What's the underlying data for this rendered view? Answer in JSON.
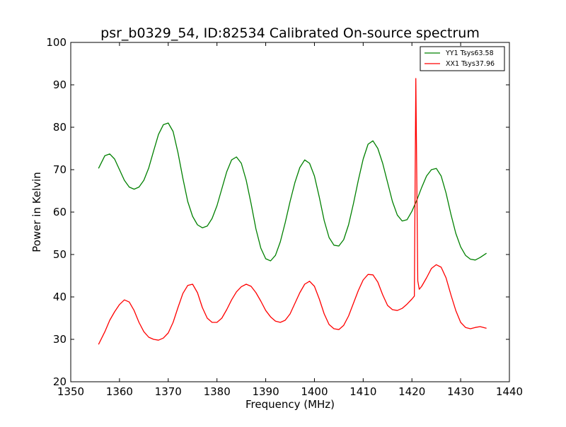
{
  "chart_data": {
    "type": "line",
    "title": "psr_b0329_54, ID:82534 Calibrated On-source spectrum",
    "xlabel": "Frequency (MHz)",
    "ylabel": "Power in Kelvin",
    "xlim": [
      1350,
      1440
    ],
    "ylim": [
      20,
      100
    ],
    "xticks": [
      1350,
      1360,
      1370,
      1380,
      1390,
      1400,
      1410,
      1420,
      1430,
      1440
    ],
    "yticks": [
      20,
      30,
      40,
      50,
      60,
      70,
      80,
      90,
      100
    ],
    "grid": false,
    "legend_position": "top-right",
    "series": [
      {
        "name": "YY1 Tsys63.58",
        "color": "#008000",
        "points": [
          [
            1355.7,
            70.3
          ],
          [
            1357.0,
            73.3
          ],
          [
            1358.0,
            73.7
          ],
          [
            1359.0,
            72.5
          ],
          [
            1360.0,
            70.0
          ],
          [
            1361.0,
            67.5
          ],
          [
            1362.0,
            65.9
          ],
          [
            1363.0,
            65.4
          ],
          [
            1364.0,
            65.9
          ],
          [
            1365.0,
            67.5
          ],
          [
            1366.0,
            70.4
          ],
          [
            1367.0,
            74.4
          ],
          [
            1368.0,
            78.3
          ],
          [
            1369.0,
            80.6
          ],
          [
            1370.0,
            81.0
          ],
          [
            1371.0,
            79.0
          ],
          [
            1372.0,
            74.0
          ],
          [
            1373.0,
            68.0
          ],
          [
            1374.0,
            62.5
          ],
          [
            1375.0,
            59.0
          ],
          [
            1376.0,
            57.0
          ],
          [
            1377.0,
            56.3
          ],
          [
            1378.0,
            56.7
          ],
          [
            1379.0,
            58.5
          ],
          [
            1380.0,
            61.5
          ],
          [
            1381.0,
            65.5
          ],
          [
            1382.0,
            69.5
          ],
          [
            1383.0,
            72.3
          ],
          [
            1384.0,
            73.0
          ],
          [
            1385.0,
            71.5
          ],
          [
            1386.0,
            67.5
          ],
          [
            1387.0,
            62.0
          ],
          [
            1388.0,
            56.0
          ],
          [
            1389.0,
            51.5
          ],
          [
            1390.0,
            49.0
          ],
          [
            1391.0,
            48.5
          ],
          [
            1392.0,
            49.8
          ],
          [
            1393.0,
            53.0
          ],
          [
            1394.0,
            57.5
          ],
          [
            1395.0,
            62.5
          ],
          [
            1396.0,
            67.0
          ],
          [
            1397.0,
            70.5
          ],
          [
            1398.0,
            72.3
          ],
          [
            1399.0,
            71.5
          ],
          [
            1400.0,
            68.5
          ],
          [
            1401.0,
            63.5
          ],
          [
            1402.0,
            58.0
          ],
          [
            1403.0,
            54.0
          ],
          [
            1404.0,
            52.2
          ],
          [
            1405.0,
            52.0
          ],
          [
            1406.0,
            53.5
          ],
          [
            1407.0,
            57.0
          ],
          [
            1408.0,
            62.0
          ],
          [
            1409.0,
            67.5
          ],
          [
            1410.0,
            72.5
          ],
          [
            1411.0,
            76.0
          ],
          [
            1412.0,
            76.8
          ],
          [
            1413.0,
            75.0
          ],
          [
            1414.0,
            71.5
          ],
          [
            1415.0,
            67.0
          ],
          [
            1416.0,
            62.5
          ],
          [
            1417.0,
            59.3
          ],
          [
            1418.0,
            57.9
          ],
          [
            1419.0,
            58.2
          ],
          [
            1420.0,
            60.2
          ],
          [
            1421.0,
            62.8
          ],
          [
            1422.0,
            65.8
          ],
          [
            1423.0,
            68.5
          ],
          [
            1424.0,
            70.0
          ],
          [
            1425.0,
            70.3
          ],
          [
            1426.0,
            68.5
          ],
          [
            1427.0,
            64.5
          ],
          [
            1428.0,
            59.5
          ],
          [
            1429.0,
            55.0
          ],
          [
            1430.0,
            51.8
          ],
          [
            1431.0,
            49.8
          ],
          [
            1432.0,
            48.9
          ],
          [
            1433.0,
            48.7
          ],
          [
            1434.0,
            49.3
          ],
          [
            1435.3,
            50.3
          ]
        ]
      },
      {
        "name": "XX1 Tsys37.96",
        "color": "#ff0000",
        "points": [
          [
            1355.7,
            28.8
          ],
          [
            1357.0,
            31.8
          ],
          [
            1358.0,
            34.5
          ],
          [
            1359.0,
            36.5
          ],
          [
            1360.0,
            38.2
          ],
          [
            1361.0,
            39.3
          ],
          [
            1362.0,
            38.8
          ],
          [
            1363.0,
            36.8
          ],
          [
            1364.0,
            34.0
          ],
          [
            1365.0,
            31.8
          ],
          [
            1366.0,
            30.5
          ],
          [
            1367.0,
            30.0
          ],
          [
            1368.0,
            29.8
          ],
          [
            1369.0,
            30.3
          ],
          [
            1370.0,
            31.5
          ],
          [
            1371.0,
            34.0
          ],
          [
            1372.0,
            37.5
          ],
          [
            1373.0,
            40.8
          ],
          [
            1374.0,
            42.7
          ],
          [
            1375.0,
            43.0
          ],
          [
            1376.0,
            41.0
          ],
          [
            1377.0,
            37.5
          ],
          [
            1378.0,
            35.0
          ],
          [
            1379.0,
            34.0
          ],
          [
            1380.0,
            34.0
          ],
          [
            1381.0,
            35.0
          ],
          [
            1382.0,
            37.0
          ],
          [
            1383.0,
            39.3
          ],
          [
            1384.0,
            41.2
          ],
          [
            1385.0,
            42.4
          ],
          [
            1386.0,
            43.0
          ],
          [
            1387.0,
            42.5
          ],
          [
            1388.0,
            41.0
          ],
          [
            1389.0,
            39.0
          ],
          [
            1390.0,
            36.8
          ],
          [
            1391.0,
            35.3
          ],
          [
            1392.0,
            34.3
          ],
          [
            1393.0,
            34.0
          ],
          [
            1394.0,
            34.5
          ],
          [
            1395.0,
            36.0
          ],
          [
            1396.0,
            38.5
          ],
          [
            1397.0,
            41.0
          ],
          [
            1398.0,
            43.0
          ],
          [
            1399.0,
            43.7
          ],
          [
            1400.0,
            42.5
          ],
          [
            1401.0,
            39.5
          ],
          [
            1402.0,
            36.0
          ],
          [
            1403.0,
            33.5
          ],
          [
            1404.0,
            32.5
          ],
          [
            1405.0,
            32.3
          ],
          [
            1406.0,
            33.3
          ],
          [
            1407.0,
            35.5
          ],
          [
            1408.0,
            38.5
          ],
          [
            1409.0,
            41.5
          ],
          [
            1410.0,
            44.0
          ],
          [
            1411.0,
            45.3
          ],
          [
            1412.0,
            45.2
          ],
          [
            1413.0,
            43.5
          ],
          [
            1414.0,
            40.5
          ],
          [
            1415.0,
            38.0
          ],
          [
            1416.0,
            37.0
          ],
          [
            1417.0,
            36.8
          ],
          [
            1418.0,
            37.3
          ],
          [
            1419.0,
            38.3
          ],
          [
            1420.0,
            39.5
          ],
          [
            1420.5,
            40.2
          ],
          [
            1420.8,
            91.5
          ],
          [
            1421.2,
            43.8
          ],
          [
            1421.5,
            41.8
          ],
          [
            1422.0,
            42.5
          ],
          [
            1423.0,
            44.5
          ],
          [
            1424.0,
            46.7
          ],
          [
            1425.0,
            47.6
          ],
          [
            1426.0,
            47.0
          ],
          [
            1427.0,
            44.5
          ],
          [
            1428.0,
            40.5
          ],
          [
            1429.0,
            36.8
          ],
          [
            1430.0,
            34.0
          ],
          [
            1431.0,
            32.8
          ],
          [
            1432.0,
            32.5
          ],
          [
            1433.0,
            32.8
          ],
          [
            1434.0,
            33.0
          ],
          [
            1435.3,
            32.6
          ]
        ]
      }
    ]
  }
}
